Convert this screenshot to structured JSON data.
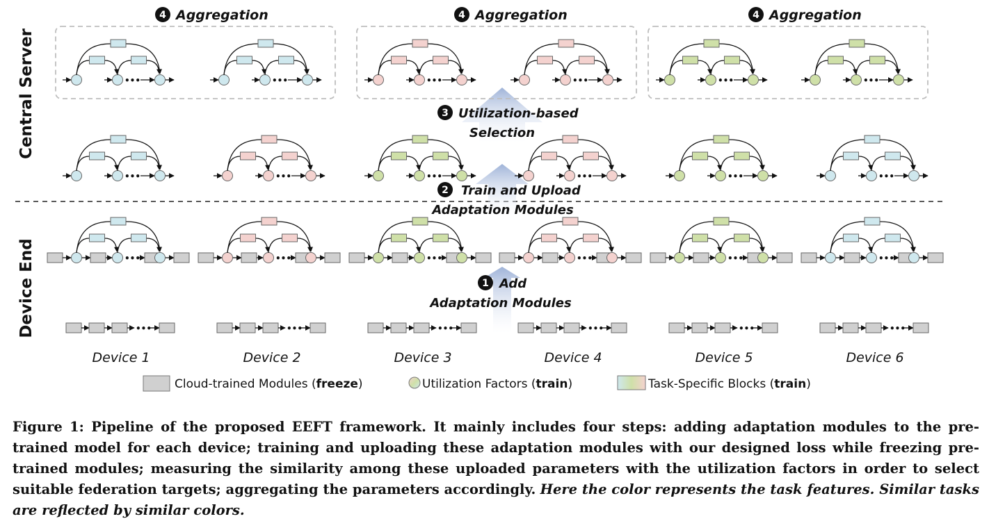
{
  "colors": {
    "frozen": "#d0d0d0",
    "blue": "#cfe8ee",
    "pink": "#f4d2cf",
    "green": "#cfe0a8",
    "arrow": "#9fb3d8",
    "divider": "#222222",
    "box_border": "#bdbdbd"
  },
  "labels": {
    "central_server": "Central Server",
    "device_end": "Device End"
  },
  "steps": {
    "aggregation": "Aggregation",
    "aggregation_number": "4",
    "utilization_line1": "Utilization-based",
    "utilization_line2": "Selection",
    "utilization_number": "3",
    "train_line1": "Train and Upload",
    "train_line2": "Adaptation Modules",
    "train_number": "2",
    "add_line1": "Add",
    "add_line2": "Adaptation Modules",
    "add_number": "1"
  },
  "devices": [
    {
      "label": "Device 1",
      "color": "blue"
    },
    {
      "label": "Device 2",
      "color": "pink"
    },
    {
      "label": "Device 3",
      "color": "green"
    },
    {
      "label": "Device 4",
      "color": "pink"
    },
    {
      "label": "Device 5",
      "color": "green"
    },
    {
      "label": "Device 6",
      "color": "blue"
    }
  ],
  "aggregation_groups": [
    {
      "color": "blue"
    },
    {
      "color": "pink"
    },
    {
      "color": "green"
    }
  ],
  "ellipsis": "•••",
  "legend": {
    "cloud_text": "Cloud-trained Modules (",
    "cloud_bold": "freeze",
    "util_text": "Utilization Factors (",
    "util_bold": "train",
    "task_text": "Task-Specific Blocks (",
    "task_bold": "train",
    "close": ")"
  },
  "caption": {
    "lead": "Figure 1: Pipeline of the proposed EEFT framework. It mainly includes four steps: adding adaptation modules to the pre-trained model for each device; training and uploading these adaptation modules with our designed loss while freezing pre-trained modules; measuring the similarity among these uploaded parameters with the utilization factors in order to select suitable federation targets; aggregating the parameters accordingly.",
    "note": "Here the color represents the task features. Similar tasks are reflected by similar colors."
  }
}
